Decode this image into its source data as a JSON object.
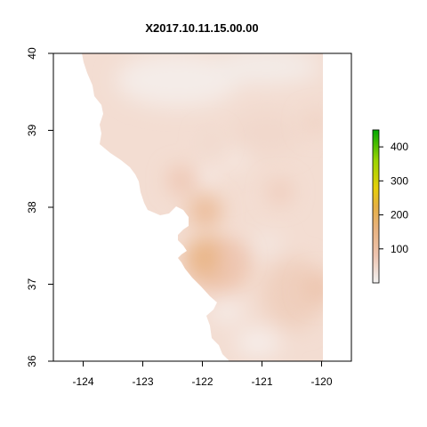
{
  "chart_data": {
    "type": "heatmap",
    "title": "X2017.10.11.15.00.00",
    "xlabel": "",
    "ylabel": "",
    "xlim": [
      -124.5,
      -119.5
    ],
    "ylim": [
      36,
      40
    ],
    "x_ticks": [
      -124,
      -123,
      -122,
      -121,
      -120
    ],
    "y_ticks": [
      36,
      37,
      38,
      39,
      40
    ],
    "x_tick_labels": [
      "-124",
      "-123",
      "-122",
      "-121",
      "-120"
    ],
    "y_tick_labels": [
      "36",
      "37",
      "38",
      "39",
      "40"
    ],
    "legend": {
      "position": "right",
      "range": [
        0,
        450
      ],
      "ticks": [
        100,
        200,
        300,
        400
      ],
      "tick_labels": [
        "100",
        "200",
        "300",
        "400"
      ],
      "colors": [
        "#f2f2f2",
        "#eec4b0",
        "#e8b27e",
        "#e6b043",
        "#e6cf08",
        "#9bd400",
        "#00a600"
      ]
    },
    "hotspots": [
      {
        "lon": -121.95,
        "lat": 37.35,
        "value": 150
      },
      {
        "lon": -121.95,
        "lat": 37.95,
        "value": 125
      },
      {
        "lon": -122.35,
        "lat": 38.35,
        "value": 85
      },
      {
        "lon": -121.5,
        "lat": 37.35,
        "value": 75
      },
      {
        "lon": -120.7,
        "lat": 38.2,
        "value": 70
      },
      {
        "lon": -120.05,
        "lat": 36.95,
        "value": 90
      },
      {
        "lon": -120.1,
        "lat": 39.1,
        "value": 60
      },
      {
        "lon": -121.85,
        "lat": 38.85,
        "value": 45
      }
    ]
  }
}
